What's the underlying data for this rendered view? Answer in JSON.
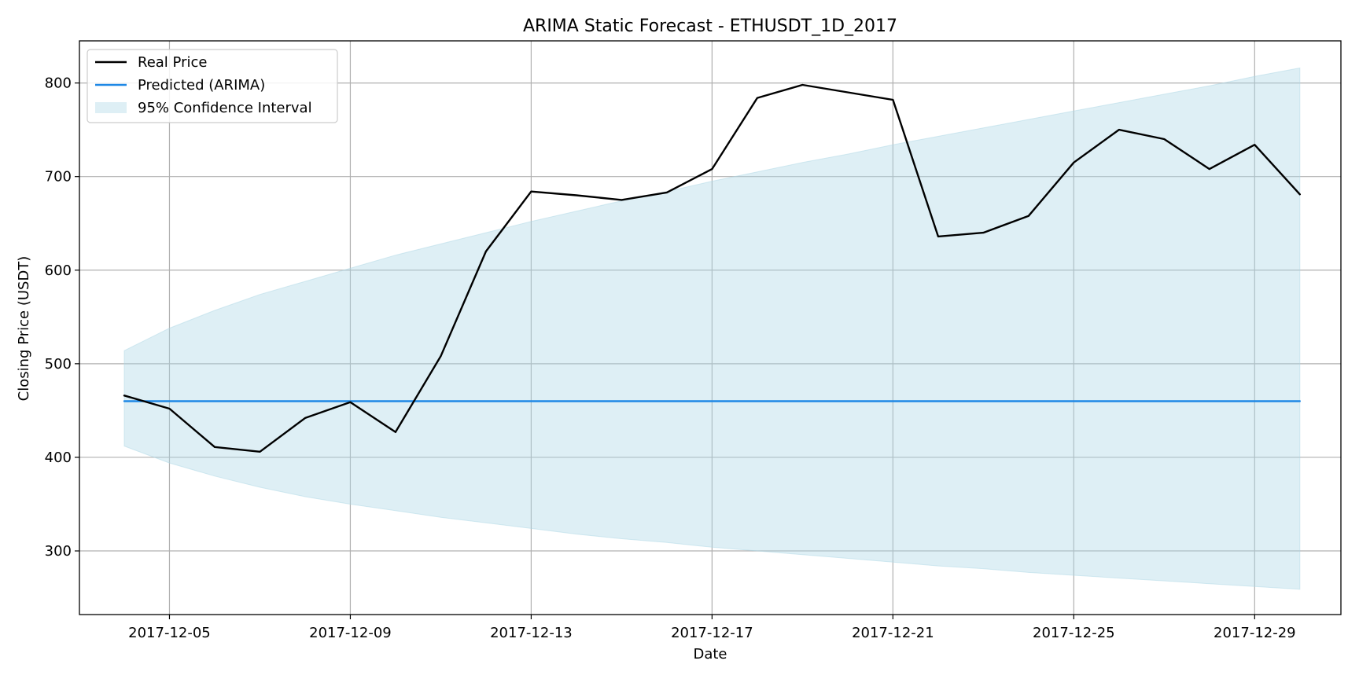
{
  "chart_data": {
    "type": "line",
    "title": "ARIMA Static Forecast - ETHUSDT_1D_2017",
    "xlabel": "Date",
    "ylabel": "Closing Price (USDT)",
    "x": [
      "2017-12-04",
      "2017-12-05",
      "2017-12-06",
      "2017-12-07",
      "2017-12-08",
      "2017-12-09",
      "2017-12-10",
      "2017-12-11",
      "2017-12-12",
      "2017-12-13",
      "2017-12-14",
      "2017-12-15",
      "2017-12-16",
      "2017-12-17",
      "2017-12-18",
      "2017-12-19",
      "2017-12-20",
      "2017-12-21",
      "2017-12-22",
      "2017-12-23",
      "2017-12-24",
      "2017-12-25",
      "2017-12-26",
      "2017-12-27",
      "2017-12-28",
      "2017-12-29",
      "2017-12-30"
    ],
    "xlim": [
      "2017-12-03T00:13:00",
      "2017-12-30T21:47:00"
    ],
    "ylim": [
      232,
      845
    ],
    "x_ticks": [
      "2017-12-05",
      "2017-12-09",
      "2017-12-13",
      "2017-12-17",
      "2017-12-21",
      "2017-12-25",
      "2017-12-29"
    ],
    "y_ticks": [
      300,
      400,
      500,
      600,
      700,
      800
    ],
    "grid": true,
    "legend_position": "upper-left",
    "series": [
      {
        "name": "Real Price",
        "color": "#000000",
        "values": [
          466,
          452,
          411,
          406,
          442,
          459,
          427,
          508,
          620,
          684,
          680,
          675,
          683,
          708,
          784,
          798,
          790,
          782,
          636,
          640,
          658,
          715,
          750,
          740,
          708,
          734,
          681
        ]
      },
      {
        "name": "Predicted (ARIMA)",
        "color": "#1e88e5",
        "values": [
          460,
          460,
          460,
          460,
          460,
          460,
          460,
          460,
          460,
          460,
          460,
          460,
          460,
          460,
          460,
          460,
          460,
          460,
          460,
          460,
          460,
          460,
          460,
          460,
          460,
          460,
          460
        ]
      }
    ],
    "confidence_interval": {
      "name": "95% Confidence Interval",
      "color": "#add8e6",
      "lower": [
        412,
        394,
        380,
        368,
        358,
        350,
        343,
        336,
        330,
        324,
        318,
        313,
        309,
        304,
        300,
        296,
        292,
        288,
        284,
        281,
        277,
        274,
        271,
        268,
        265,
        262,
        259
      ],
      "upper": [
        514,
        538,
        557,
        574,
        588,
        602,
        616,
        628,
        640,
        652,
        663,
        674,
        684,
        695,
        705,
        715,
        724,
        734,
        743,
        752,
        761,
        770,
        779,
        788,
        797,
        807,
        816
      ]
    }
  }
}
